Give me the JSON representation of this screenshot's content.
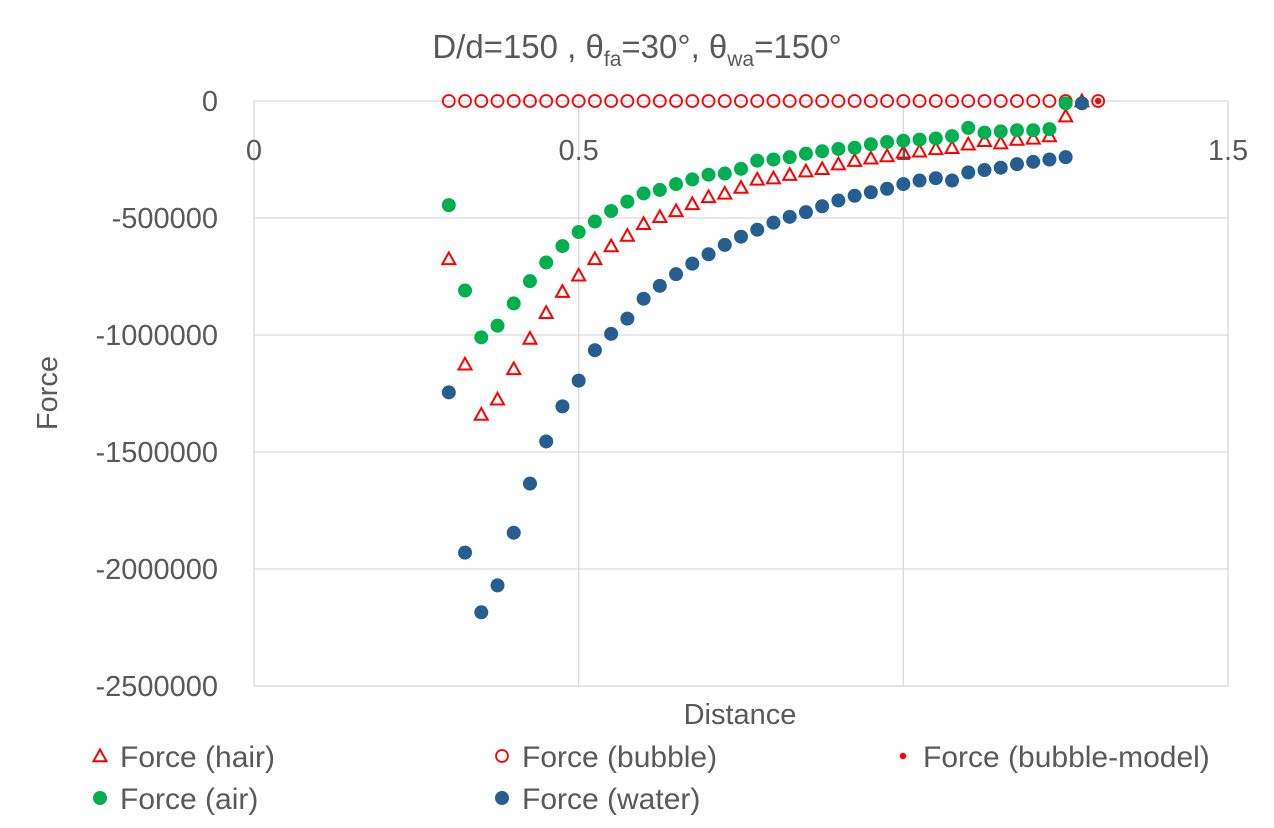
{
  "chart_data": {
    "type": "scatter",
    "title": {
      "prefix": "D/d=150 , θ",
      "sub1": "fa",
      "mid": "=30°, θ",
      "sub2": "wa",
      "suffix": "=150°"
    },
    "xlabel": "Distance",
    "ylabel": "Force",
    "xlim": [
      0,
      1.5
    ],
    "ylim": [
      -2500000,
      0
    ],
    "x_ticks": [
      0,
      0.5,
      1,
      1.5
    ],
    "x_tick_labels": [
      "0",
      "0.5",
      "1",
      "1.5"
    ],
    "y_ticks": [
      0,
      -500000,
      -1000000,
      -1500000,
      -2000000,
      -2500000
    ],
    "y_tick_labels": [
      "0",
      "-500000",
      "-1000000",
      "-1500000",
      "-2000000",
      "-2500000"
    ],
    "grid": true,
    "legend_position": "bottom",
    "series": [
      {
        "name": "Force (hair)",
        "marker": "triangle-open",
        "color": "#ff0000",
        "x": [
          0.3,
          0.325,
          0.35,
          0.375,
          0.4,
          0.425,
          0.45,
          0.475,
          0.5,
          0.525,
          0.55,
          0.575,
          0.6,
          0.625,
          0.65,
          0.675,
          0.7,
          0.725,
          0.75,
          0.775,
          0.8,
          0.825,
          0.85,
          0.875,
          0.9,
          0.925,
          0.95,
          0.975,
          1.0,
          1.025,
          1.05,
          1.075,
          1.1,
          1.125,
          1.15,
          1.175,
          1.2,
          1.225,
          1.25,
          1.275
        ],
        "y": [
          -675000,
          -1125000,
          -1340000,
          -1275000,
          -1145000,
          -1015000,
          -905000,
          -815000,
          -745000,
          -675000,
          -620000,
          -575000,
          -525000,
          -495000,
          -470000,
          -440000,
          -410000,
          -395000,
          -370000,
          -335000,
          -330000,
          -315000,
          -300000,
          -290000,
          -270000,
          -255000,
          -245000,
          -235000,
          -220000,
          -215000,
          -205000,
          -200000,
          -185000,
          -170000,
          -180000,
          -165000,
          -160000,
          -150000,
          -65000,
          0
        ]
      },
      {
        "name": "Force (bubble)",
        "marker": "circle-open",
        "color": "#ff0000",
        "x": [
          0.3,
          0.325,
          0.35,
          0.375,
          0.4,
          0.425,
          0.45,
          0.475,
          0.5,
          0.525,
          0.55,
          0.575,
          0.6,
          0.625,
          0.65,
          0.675,
          0.7,
          0.725,
          0.75,
          0.775,
          0.8,
          0.825,
          0.85,
          0.875,
          0.9,
          0.925,
          0.95,
          0.975,
          1.0,
          1.025,
          1.05,
          1.075,
          1.1,
          1.125,
          1.15,
          1.175,
          1.2,
          1.225,
          1.25,
          1.3
        ],
        "y": [
          0,
          0,
          0,
          0,
          0,
          0,
          0,
          0,
          0,
          0,
          0,
          0,
          0,
          0,
          0,
          0,
          0,
          0,
          0,
          0,
          0,
          0,
          0,
          0,
          0,
          0,
          0,
          0,
          0,
          0,
          0,
          0,
          0,
          0,
          0,
          0,
          0,
          0,
          0,
          0
        ]
      },
      {
        "name": "Force (bubble-model)",
        "marker": "dot-small",
        "color": "#ff0000",
        "x": [
          1.275,
          1.3
        ],
        "y": [
          0,
          0
        ]
      },
      {
        "name": "Force (air)",
        "marker": "circle-filled",
        "color": "#00b050",
        "x": [
          0.3,
          0.325,
          0.35,
          0.375,
          0.4,
          0.425,
          0.45,
          0.475,
          0.5,
          0.525,
          0.55,
          0.575,
          0.6,
          0.625,
          0.65,
          0.675,
          0.7,
          0.725,
          0.75,
          0.775,
          0.8,
          0.825,
          0.85,
          0.875,
          0.9,
          0.925,
          0.95,
          0.975,
          1.0,
          1.025,
          1.05,
          1.075,
          1.1,
          1.125,
          1.15,
          1.175,
          1.2,
          1.225,
          1.25
        ],
        "y": [
          -445000,
          -810000,
          -1010000,
          -960000,
          -865000,
          -770000,
          -690000,
          -620000,
          -560000,
          -515000,
          -470000,
          -430000,
          -395000,
          -380000,
          -355000,
          -335000,
          -315000,
          -310000,
          -290000,
          -255000,
          -250000,
          -240000,
          -225000,
          -215000,
          -205000,
          -200000,
          -185000,
          -175000,
          -170000,
          -165000,
          -160000,
          -150000,
          -115000,
          -135000,
          -130000,
          -125000,
          -125000,
          -120000,
          -10000
        ]
      },
      {
        "name": "Force (water)",
        "marker": "circle-filled",
        "color": "#255e91",
        "x": [
          0.3,
          0.325,
          0.35,
          0.375,
          0.4,
          0.425,
          0.45,
          0.475,
          0.5,
          0.525,
          0.55,
          0.575,
          0.6,
          0.625,
          0.65,
          0.675,
          0.7,
          0.725,
          0.75,
          0.775,
          0.8,
          0.825,
          0.85,
          0.875,
          0.9,
          0.925,
          0.95,
          0.975,
          1.0,
          1.025,
          1.05,
          1.075,
          1.1,
          1.125,
          1.15,
          1.175,
          1.2,
          1.225,
          1.25,
          1.275
        ],
        "y": [
          -1245000,
          -1930000,
          -2185000,
          -2070000,
          -1845000,
          -1635000,
          -1455000,
          -1305000,
          -1195000,
          -1065000,
          -995000,
          -930000,
          -845000,
          -790000,
          -740000,
          -695000,
          -655000,
          -615000,
          -580000,
          -550000,
          -520000,
          -495000,
          -475000,
          -450000,
          -425000,
          -405000,
          -390000,
          -375000,
          -355000,
          -340000,
          -330000,
          -340000,
          -305000,
          -295000,
          -285000,
          -270000,
          -260000,
          -250000,
          -240000,
          -10000
        ]
      }
    ]
  }
}
